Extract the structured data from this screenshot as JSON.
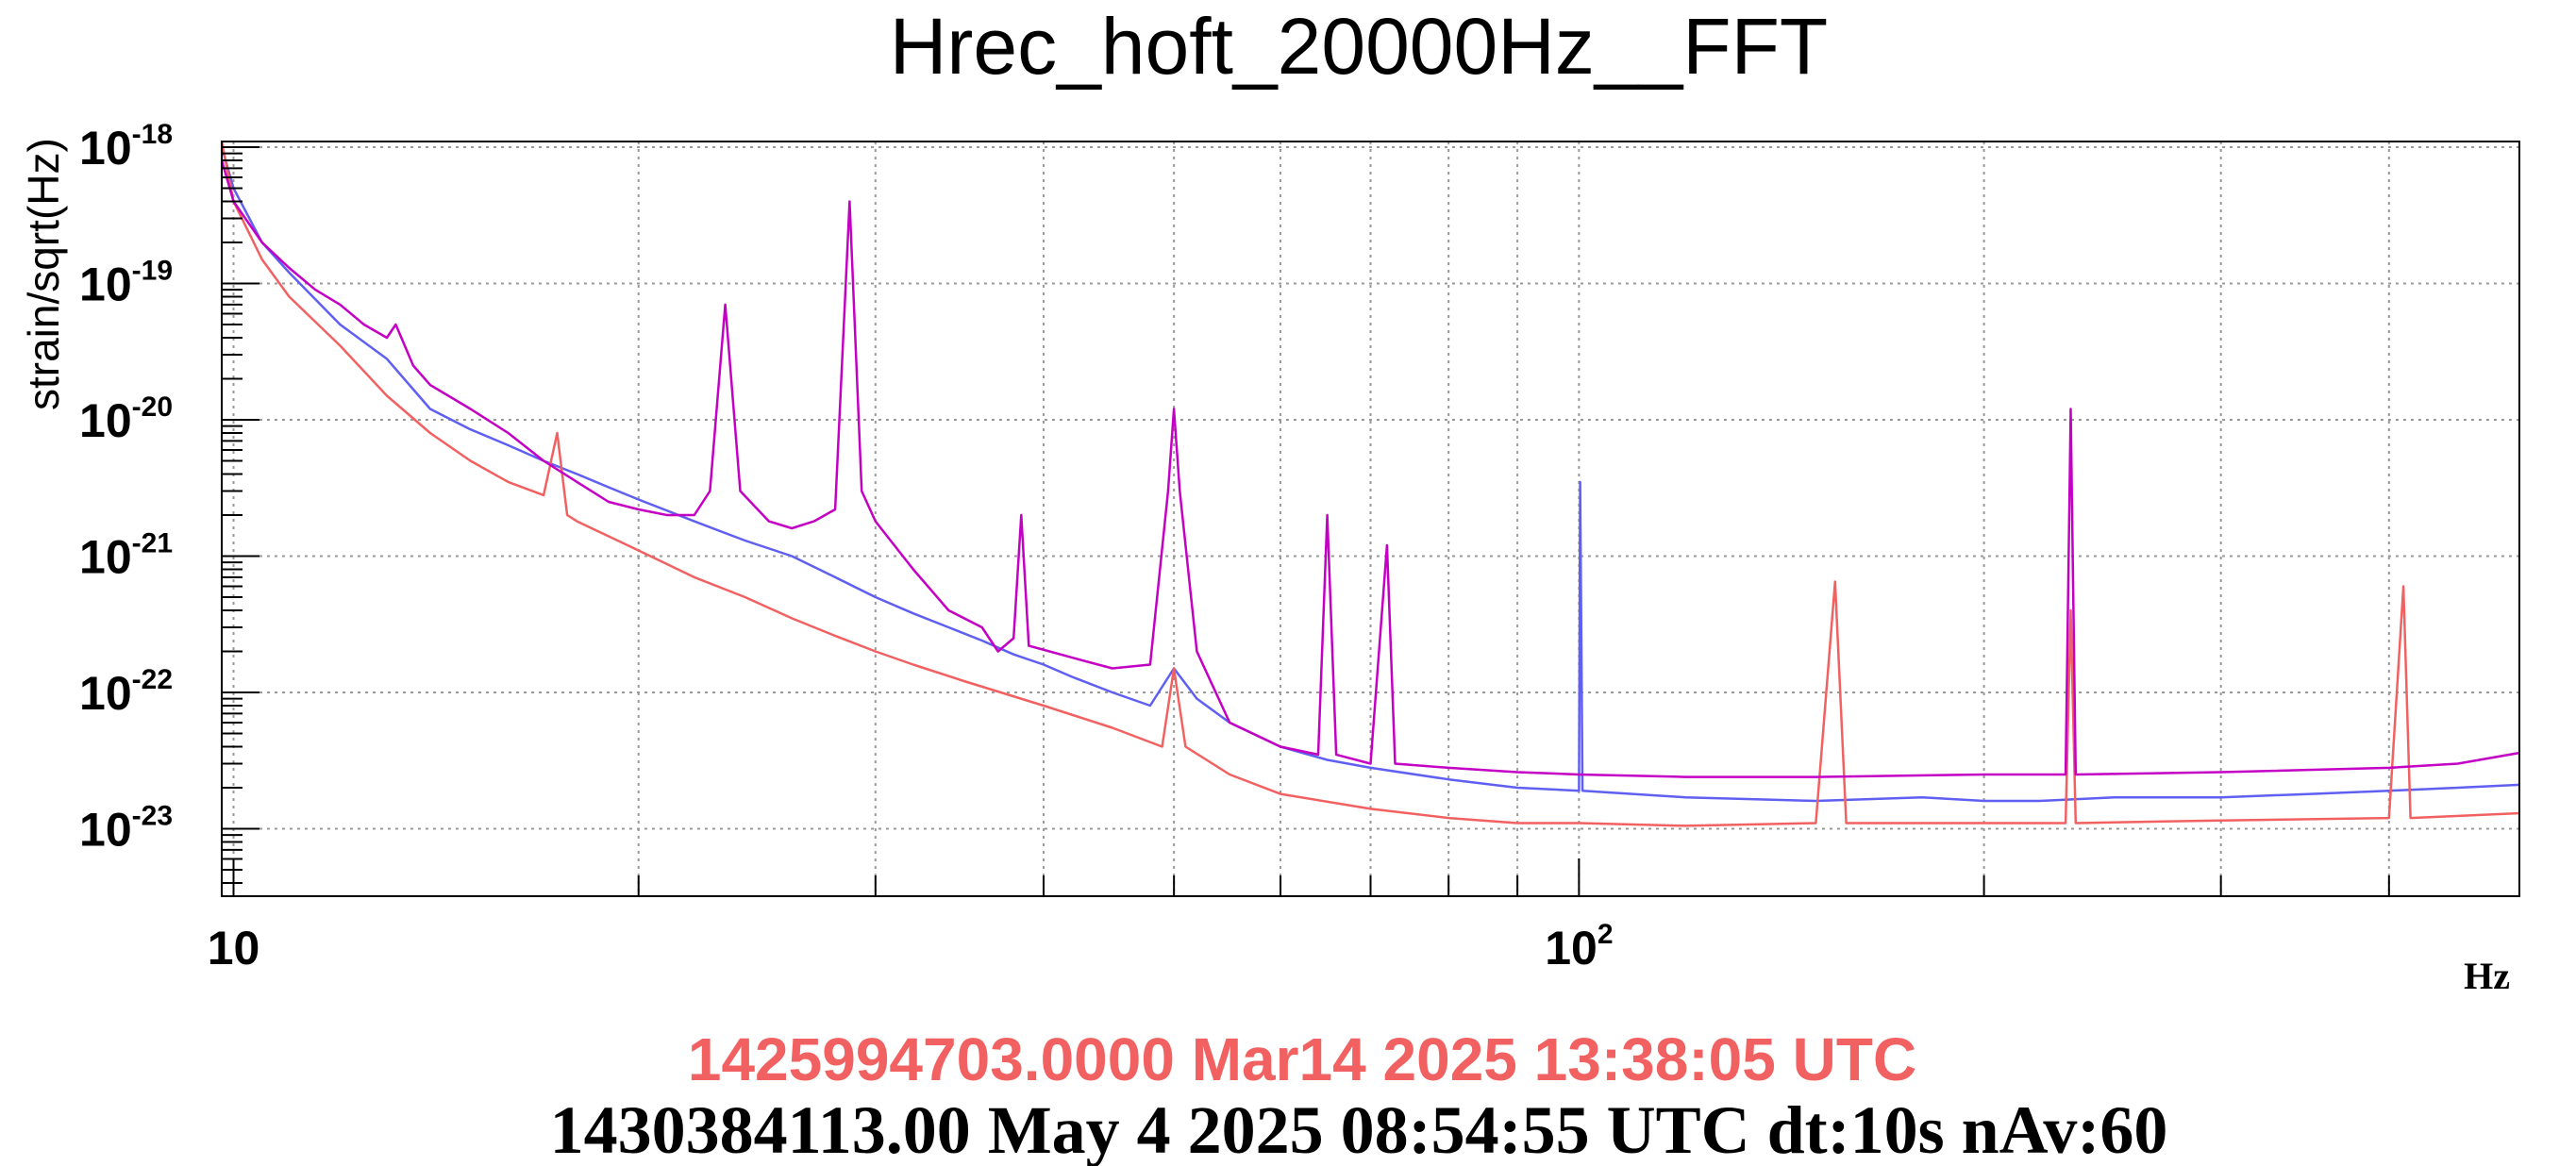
{
  "chart_data": {
    "type": "line",
    "title": "Hrec_hoft_20000Hz__FFT",
    "ylabel": "strain/sqrt(Hz)",
    "xunit": "Hz",
    "x_scale": "log",
    "y_scale": "log",
    "xlim": [
      9.8,
      500
    ],
    "ylim": [
      3.2e-24,
      1.1e-18
    ],
    "grid": true,
    "x_ticks": [
      {
        "value": 10,
        "base": "10",
        "exp": ""
      },
      {
        "value": 100,
        "base": "10",
        "exp": "2"
      }
    ],
    "y_ticks": [
      {
        "value": 1e-18,
        "base": "10",
        "exp": "-18"
      },
      {
        "value": 1e-19,
        "base": "10",
        "exp": "-19"
      },
      {
        "value": 1e-20,
        "base": "10",
        "exp": "-20"
      },
      {
        "value": 1e-21,
        "base": "10",
        "exp": "-21"
      },
      {
        "value": 1e-22,
        "base": "10",
        "exp": "-22"
      },
      {
        "value": 1e-23,
        "base": "10",
        "exp": "-23"
      }
    ],
    "series": [
      {
        "color": "#5f5ff2",
        "points": [
          [
            9.8,
            1e-18
          ],
          [
            10,
            5e-19
          ],
          [
            10.5,
            2e-19
          ],
          [
            11,
            1.2e-19
          ],
          [
            12,
            5e-20
          ],
          [
            13,
            2.8e-20
          ],
          [
            14,
            1.2e-20
          ],
          [
            15,
            8.5e-21
          ],
          [
            16,
            6.5e-21
          ],
          [
            17,
            5e-21
          ],
          [
            18,
            4e-21
          ],
          [
            19,
            3.2e-21
          ],
          [
            20,
            2.6e-21
          ],
          [
            22,
            1.8e-21
          ],
          [
            24,
            1.3e-21
          ],
          [
            26,
            1e-21
          ],
          [
            28,
            7e-22
          ],
          [
            30,
            5e-22
          ],
          [
            32,
            3.8e-22
          ],
          [
            34,
            3e-22
          ],
          [
            36,
            2.4e-22
          ],
          [
            38,
            1.9e-22
          ],
          [
            40,
            1.6e-22
          ],
          [
            42,
            1.3e-22
          ],
          [
            45,
            1e-22
          ],
          [
            48,
            8e-23
          ],
          [
            50,
            1.5e-22
          ],
          [
            52,
            9e-23
          ],
          [
            55,
            6e-23
          ],
          [
            60,
            4e-23
          ],
          [
            65,
            3.2e-23
          ],
          [
            70,
            2.8e-23
          ],
          [
            80,
            2.3e-23
          ],
          [
            90,
            2e-23
          ],
          [
            100,
            1.9e-23
          ],
          [
            100.2,
            3.5e-21
          ],
          [
            100.6,
            1.9e-23
          ],
          [
            120,
            1.7e-23
          ],
          [
            150,
            1.6e-23
          ],
          [
            180,
            1.7e-23
          ],
          [
            200,
            1.6e-23
          ],
          [
            220,
            1.6e-23
          ],
          [
            250,
            1.7e-23
          ],
          [
            300,
            1.7e-23
          ],
          [
            350,
            1.8e-23
          ],
          [
            400,
            1.9e-23
          ],
          [
            450,
            2e-23
          ],
          [
            500,
            2.1e-23
          ]
        ]
      },
      {
        "color": "#f26161",
        "points": [
          [
            9.8,
            1.1e-18
          ],
          [
            10,
            4e-19
          ],
          [
            10.5,
            1.5e-19
          ],
          [
            11,
            8e-20
          ],
          [
            12,
            3.5e-20
          ],
          [
            13,
            1.5e-20
          ],
          [
            14,
            8e-21
          ],
          [
            15,
            5e-21
          ],
          [
            16,
            3.5e-21
          ],
          [
            17,
            2.8e-21
          ],
          [
            17.4,
            8e-21
          ],
          [
            17.7,
            2e-21
          ],
          [
            18,
            1.8e-21
          ],
          [
            20,
            1.1e-21
          ],
          [
            22,
            7e-22
          ],
          [
            24,
            5e-22
          ],
          [
            26,
            3.5e-22
          ],
          [
            28,
            2.6e-22
          ],
          [
            30,
            2e-22
          ],
          [
            32,
            1.6e-22
          ],
          [
            35,
            1.2e-22
          ],
          [
            40,
            8e-23
          ],
          [
            45,
            5.5e-23
          ],
          [
            49,
            4e-23
          ],
          [
            50,
            1.5e-22
          ],
          [
            51,
            4e-23
          ],
          [
            55,
            2.5e-23
          ],
          [
            60,
            1.8e-23
          ],
          [
            70,
            1.4e-23
          ],
          [
            80,
            1.2e-23
          ],
          [
            90,
            1.1e-23
          ],
          [
            100,
            1.1e-23
          ],
          [
            120,
            1.05e-23
          ],
          [
            150,
            1.1e-23
          ],
          [
            155,
            6.5e-22
          ],
          [
            158,
            1.1e-23
          ],
          [
            200,
            1.1e-23
          ],
          [
            230,
            1.1e-23
          ],
          [
            232,
            4e-22
          ],
          [
            234,
            1.1e-23
          ],
          [
            300,
            1.15e-23
          ],
          [
            400,
            1.2e-23
          ],
          [
            410,
            6e-22
          ],
          [
            415,
            1.2e-23
          ],
          [
            500,
            1.3e-23
          ]
        ]
      },
      {
        "color": "#c400c4",
        "points": [
          [
            9.8,
            8e-19
          ],
          [
            10,
            4e-19
          ],
          [
            10.5,
            2e-19
          ],
          [
            11,
            1.3e-19
          ],
          [
            11.5,
            9e-20
          ],
          [
            12,
            7e-20
          ],
          [
            12.5,
            5e-20
          ],
          [
            13,
            4e-20
          ],
          [
            13.2,
            5e-20
          ],
          [
            13.6,
            2.5e-20
          ],
          [
            14,
            1.8e-20
          ],
          [
            15,
            1.2e-20
          ],
          [
            16,
            8e-21
          ],
          [
            17,
            5e-21
          ],
          [
            18,
            3.5e-21
          ],
          [
            19,
            2.5e-21
          ],
          [
            20,
            2.2e-21
          ],
          [
            21,
            2e-21
          ],
          [
            22,
            2e-21
          ],
          [
            22.6,
            3e-21
          ],
          [
            23.2,
            7e-20
          ],
          [
            23.8,
            3e-21
          ],
          [
            25,
            1.8e-21
          ],
          [
            26,
            1.6e-21
          ],
          [
            27,
            1.8e-21
          ],
          [
            28,
            2.2e-21
          ],
          [
            28.7,
            4e-19
          ],
          [
            29.3,
            3e-21
          ],
          [
            30,
            1.8e-21
          ],
          [
            32,
            8e-22
          ],
          [
            34,
            4e-22
          ],
          [
            36,
            3e-22
          ],
          [
            37,
            2e-22
          ],
          [
            38,
            2.5e-22
          ],
          [
            38.5,
            2e-21
          ],
          [
            39,
            2.2e-22
          ],
          [
            42,
            1.8e-22
          ],
          [
            45,
            1.5e-22
          ],
          [
            48,
            1.6e-22
          ],
          [
            49.5,
            3e-21
          ],
          [
            50,
            1.2e-20
          ],
          [
            50.5,
            3e-21
          ],
          [
            52,
            2e-22
          ],
          [
            55,
            6e-23
          ],
          [
            60,
            4e-23
          ],
          [
            64,
            3.5e-23
          ],
          [
            65,
            2e-21
          ],
          [
            66,
            3.5e-23
          ],
          [
            70,
            3e-23
          ],
          [
            72,
            1.2e-21
          ],
          [
            73,
            3e-23
          ],
          [
            80,
            2.8e-23
          ],
          [
            90,
            2.6e-23
          ],
          [
            100,
            2.5e-23
          ],
          [
            120,
            2.4e-23
          ],
          [
            150,
            2.4e-23
          ],
          [
            200,
            2.5e-23
          ],
          [
            230,
            2.5e-23
          ],
          [
            232,
            1.2e-20
          ],
          [
            234,
            2.5e-23
          ],
          [
            300,
            2.6e-23
          ],
          [
            400,
            2.8e-23
          ],
          [
            450,
            3e-23
          ],
          [
            500,
            3.6e-23
          ]
        ]
      }
    ]
  },
  "timestamps": {
    "reference": "1425994703.0000 Mar14 2025 13:38:05 UTC",
    "current": "1430384113.00 May 4 2025 08:54:55 UTC dt:10s nAv:60"
  },
  "colors": {
    "reference_text": "#f26161",
    "current_text": "#000000",
    "grid": "#999999"
  }
}
